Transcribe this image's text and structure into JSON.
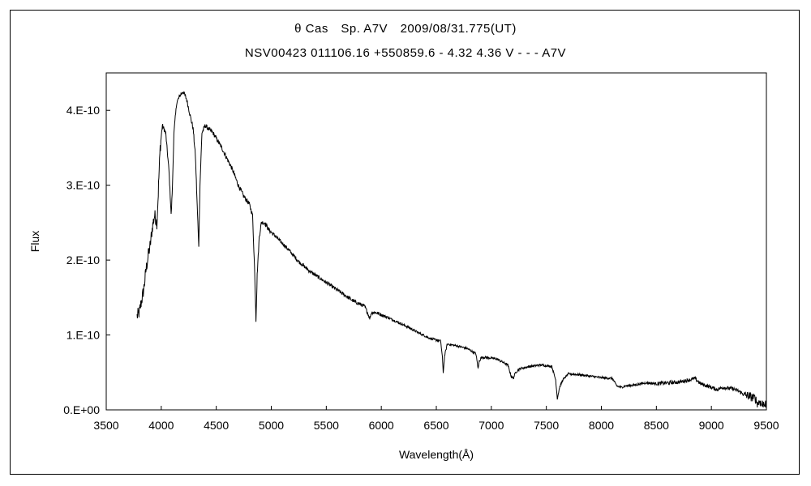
{
  "chart_data": {
    "type": "line",
    "title": "θ Cas　Sp. A7V　2009/08/31.775(UT)",
    "subtitle": "NSV00423 011106.16 +550859.6 - 4.32 4.36 V - - - A7V",
    "xlabel": "Wavelength(Å)",
    "ylabel": "Flux",
    "xlim": [
      3500,
      9500
    ],
    "ylim": [
      0,
      4.5e-10
    ],
    "x_ticks": [
      3500,
      4000,
      4500,
      5000,
      5500,
      6000,
      6500,
      7000,
      7500,
      8000,
      8500,
      9000,
      9500
    ],
    "x_tick_labels": [
      "3500",
      "4000",
      "4500",
      "5000",
      "5500",
      "6000",
      "6500",
      "7000",
      "7500",
      "8000",
      "8500",
      "9000",
      "9500"
    ],
    "y_ticks": [
      0,
      1e-10,
      2e-10,
      3e-10,
      4e-10
    ],
    "y_tick_labels": [
      "0.E+00",
      "1.E-10",
      "2.E-10",
      "3.E-10",
      "4.E-10"
    ],
    "grid": false,
    "legend": "none",
    "line_color": "#000000",
    "series": [
      {
        "x": [
          3780,
          3800,
          3820,
          3840,
          3860,
          3880,
          3900,
          3920,
          3940,
          3960,
          3970,
          3990,
          4010,
          4040,
          4070,
          4090,
          4102,
          4115,
          4140,
          4170,
          4200,
          4230,
          4260,
          4290,
          4310,
          4330,
          4341,
          4352,
          4370,
          4400,
          4430,
          4470,
          4510,
          4550,
          4600,
          4650,
          4700,
          4750,
          4800,
          4830,
          4850,
          4861,
          4872,
          4890,
          4910,
          4940,
          4980,
          5050,
          5150,
          5250,
          5350,
          5450,
          5550,
          5650,
          5750,
          5850,
          5880,
          5895,
          5910,
          5950,
          6050,
          6150,
          6250,
          6350,
          6450,
          6540,
          6555,
          6563,
          6575,
          6600,
          6700,
          6780,
          6860,
          6880,
          6890,
          6910,
          6950,
          7050,
          7150,
          7180,
          7200,
          7220,
          7260,
          7350,
          7450,
          7550,
          7585,
          7600,
          7620,
          7650,
          7700,
          7800,
          7900,
          8000,
          8100,
          8140,
          8180,
          8220,
          8300,
          8400,
          8500,
          8600,
          8700,
          8800,
          8850,
          8900,
          9000,
          9050,
          9100,
          9200,
          9250,
          9300,
          9350,
          9400,
          9420,
          9440,
          9460,
          9480,
          9500
        ],
        "y": [
          1.25e-10,
          1.3e-10,
          1.45e-10,
          1.6e-10,
          1.85e-10,
          2.05e-10,
          2.2e-10,
          2.45e-10,
          2.6e-10,
          2.5e-10,
          2.8e-10,
          3.5e-10,
          3.8e-10,
          3.7e-10,
          3.2e-10,
          2.6e-10,
          3e-10,
          3.7e-10,
          4.1e-10,
          4.2e-10,
          4.25e-10,
          4.15e-10,
          3.95e-10,
          3.75e-10,
          3.4e-10,
          2.6e-10,
          2.2e-10,
          3e-10,
          3.7e-10,
          3.8e-10,
          3.75e-10,
          3.7e-10,
          3.6e-10,
          3.5e-10,
          3.35e-10,
          3.2e-10,
          3e-10,
          2.85e-10,
          2.75e-10,
          2.6e-10,
          1.8e-10,
          1.2e-10,
          1.8e-10,
          2.3e-10,
          2.5e-10,
          2.5e-10,
          2.4e-10,
          2.3e-10,
          2.15e-10,
          1.98e-10,
          1.85e-10,
          1.75e-10,
          1.65e-10,
          1.55e-10,
          1.45e-10,
          1.38e-10,
          1.28e-10,
          1.22e-10,
          1.3e-10,
          1.3e-10,
          1.24e-10,
          1.17e-10,
          1.1e-10,
          1.02e-10,
          9.5e-11,
          9.2e-11,
          7e-11,
          5e-11,
          7.2e-11,
          8.8e-11,
          8.5e-11,
          8.2e-11,
          7.5e-11,
          5.5e-11,
          6.5e-11,
          7e-11,
          7e-11,
          6.8e-11,
          6e-11,
          4.5e-11,
          4.2e-11,
          5e-11,
          5.5e-11,
          5.8e-11,
          6e-11,
          5.8e-11,
          4e-11,
          1.5e-11,
          3e-11,
          4e-11,
          4.8e-11,
          4.7e-11,
          4.5e-11,
          4.3e-11,
          4.2e-11,
          3.2e-11,
          3e-11,
          3.2e-11,
          3.3e-11,
          3.6e-11,
          3.5e-11,
          3.6e-11,
          3.7e-11,
          4e-11,
          4.2e-11,
          3.5e-11,
          3e-11,
          2.7e-11,
          3e-11,
          2.8e-11,
          2.5e-11,
          2e-11,
          1.8e-11,
          1.5e-11,
          8e-12,
          1.2e-11,
          6e-12,
          1e-11,
          5e-12
        ]
      }
    ]
  }
}
